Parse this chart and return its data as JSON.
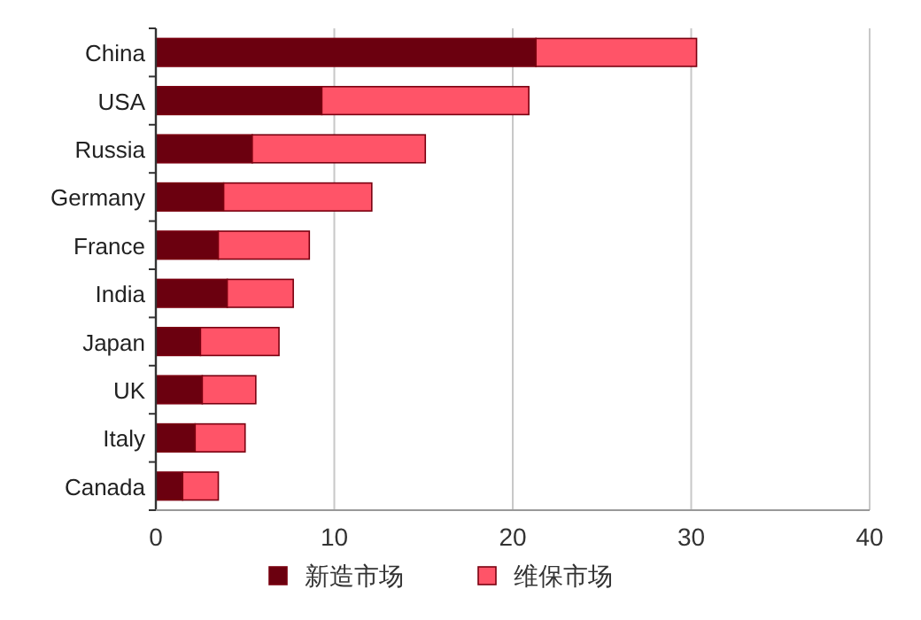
{
  "chart_data": {
    "type": "bar",
    "orientation": "horizontal",
    "stacked": true,
    "categories": [
      "China",
      "USA",
      "Russia",
      "Germany",
      "France",
      "India",
      "Japan",
      "UK",
      "Italy",
      "Canada"
    ],
    "series": [
      {
        "name": "新造市场",
        "color": "#6b000f",
        "values": [
          21.3,
          9.3,
          5.4,
          3.8,
          3.5,
          4.0,
          2.5,
          2.6,
          2.2,
          1.5
        ]
      },
      {
        "name": "维保市场",
        "color": "#ff5468",
        "values": [
          9.0,
          11.6,
          9.7,
          8.3,
          5.1,
          3.7,
          4.4,
          3.0,
          2.8,
          2.0
        ]
      }
    ],
    "xlim": [
      0,
      40
    ],
    "xticks": [
      0,
      10,
      20,
      30,
      40
    ],
    "grid": "x",
    "legend": "bottom"
  }
}
